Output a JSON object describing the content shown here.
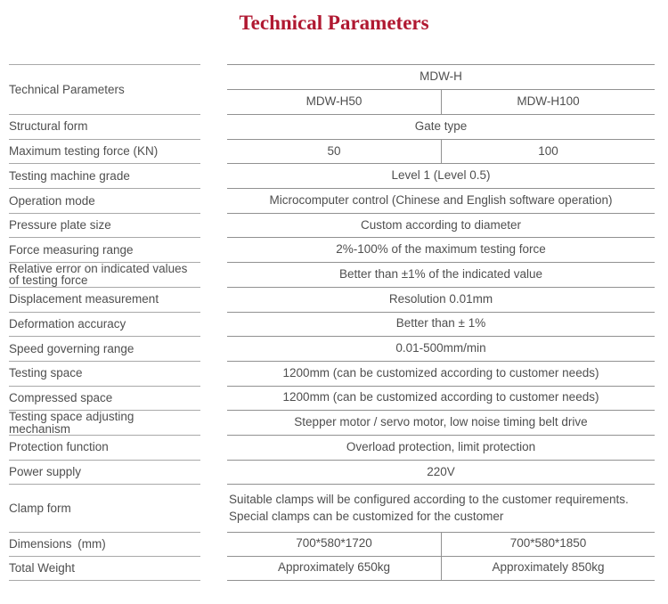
{
  "page": {
    "title": "Technical Parameters"
  },
  "colors": {
    "title_red": "#b01831",
    "body_text": "#4f4f4f",
    "left_rule": "#a9a9a9",
    "right_rule": "#919191"
  },
  "header": {
    "left_label": "Technical Parameters",
    "series": "MDW-H",
    "model_a": "MDW-H50",
    "model_b": "MDW-H100"
  },
  "rows": [
    {
      "label": "Structural form",
      "value": "Gate type"
    },
    {
      "label": "Maximum testing force (KN)",
      "value_a": "50",
      "value_b": "100"
    },
    {
      "label": "Testing machine grade",
      "value": "Level 1 (Level 0.5)"
    },
    {
      "label": "Operation mode",
      "value": "Microcomputer control (Chinese and English software operation)"
    },
    {
      "label": "Pressure plate size",
      "value": "Custom according to diameter"
    },
    {
      "label": "Force measuring range",
      "value": "2%-100% of the maximum testing force"
    },
    {
      "label": "Relative error on indicated values of testing force",
      "value": "Better than ±1% of the indicated value"
    },
    {
      "label": "Displacement measurement",
      "value": "Resolution 0.01mm"
    },
    {
      "label": "Deformation accuracy",
      "value": "Better than ± 1%"
    },
    {
      "label": "Speed governing range",
      "value": "0.01-500mm/min"
    },
    {
      "label": "Testing space",
      "value": "1200mm (can be customized according to customer needs)"
    },
    {
      "label": "Compressed space",
      "value": "1200mm (can be customized according to customer needs)"
    },
    {
      "label": "Testing space adjusting mechanism",
      "value": "Stepper motor / servo motor, low noise timing belt drive"
    },
    {
      "label": "Protection function",
      "value": "Overload protection, limit protection"
    },
    {
      "label": "Power supply",
      "value": "220V"
    },
    {
      "label": "Clamp form",
      "value": "Suitable clamps will be configured according to the customer requirements. Special clamps can be customized for the customer"
    },
    {
      "label": "Dimensions (mm)",
      "value_a": "700*580*1720",
      "value_b": "700*580*1850"
    },
    {
      "label": "Total Weight",
      "value_a": "Approximately 650kg",
      "value_b": "Approximately 850kg"
    }
  ]
}
